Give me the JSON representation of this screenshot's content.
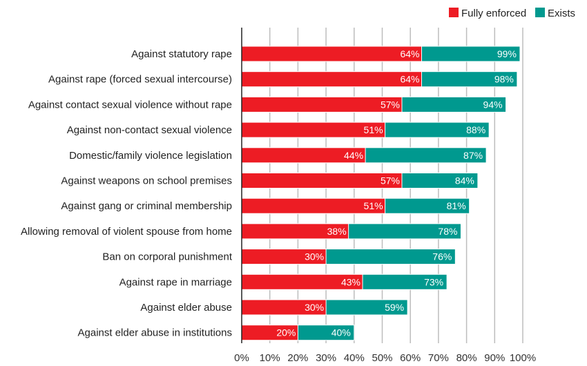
{
  "chart_data": {
    "type": "bar",
    "orientation": "horizontal",
    "stacking": "overlay",
    "title": "",
    "xlabel": "",
    "ylabel": "",
    "xlim": [
      0,
      100
    ],
    "x_ticks": [
      "0%",
      "10%",
      "20%",
      "30%",
      "40%",
      "50%",
      "60%",
      "70%",
      "80%",
      "90%",
      "100%"
    ],
    "grid": "vertical",
    "legend_position": "top-right",
    "categories": [
      "Against statutory rape",
      "Against rape (forced sexual intercourse)",
      "Against contact sexual violence without rape",
      "Against non-contact sexual violence",
      "Domestic/family violence legislation",
      "Against weapons on school premises",
      "Against gang or criminal membership",
      "Allowing removal of violent spouse from home",
      "Ban on corporal punishment",
      "Against rape in marriage",
      "Against elder abuse",
      "Against elder abuse in institutions"
    ],
    "series": [
      {
        "name": "Exists",
        "color": "#00998f",
        "values": [
          99,
          98,
          94,
          88,
          87,
          84,
          81,
          78,
          76,
          73,
          59,
          40
        ],
        "labels": [
          "99%",
          "98%",
          "94%",
          "88%",
          "87%",
          "84%",
          "81%",
          "78%",
          "76%",
          "73%",
          "59%",
          "40%"
        ]
      },
      {
        "name": "Fully enforced",
        "color": "#ed1c24",
        "values": [
          64,
          64,
          57,
          51,
          44,
          57,
          51,
          38,
          30,
          43,
          30,
          20
        ],
        "labels": [
          "64%",
          "64%",
          "57%",
          "51%",
          "44%",
          "57%",
          "51%",
          "38%",
          "30%",
          "43%",
          "30%",
          "20%"
        ]
      }
    ],
    "legend": [
      {
        "name": "Fully enforced",
        "color": "#ed1c24"
      },
      {
        "name": "Exists",
        "color": "#00998f"
      }
    ]
  }
}
